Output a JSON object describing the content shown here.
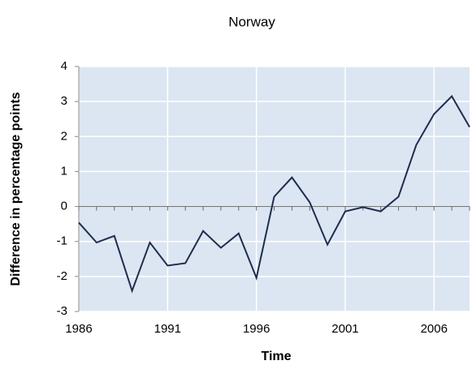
{
  "chart_data": {
    "type": "line",
    "title": "Norway",
    "x_label": "Time",
    "y_label": "Difference in percentage points",
    "x": [
      1986,
      1987,
      1988,
      1989,
      1990,
      1991,
      1992,
      1993,
      1994,
      1995,
      1996,
      1997,
      1998,
      1999,
      2000,
      2001,
      2002,
      2003,
      2004,
      2005,
      2006,
      2007,
      2008
    ],
    "series": [
      {
        "name": "Norway",
        "color": "#1f2d4e",
        "values": [
          -0.46,
          -1.03,
          -0.84,
          -2.41,
          -1.03,
          -1.69,
          -1.62,
          -0.7,
          -1.18,
          -0.77,
          -2.04,
          0.28,
          0.83,
          0.12,
          -1.09,
          -0.14,
          -0.02,
          -0.14,
          0.28,
          1.76,
          2.64,
          3.15,
          2.27
        ]
      }
    ],
    "xlim": [
      1986,
      2008
    ],
    "xticks": [
      1986,
      1991,
      1996,
      2001,
      2006
    ],
    "ylim": [
      -3,
      4
    ],
    "yticks": [
      -3,
      -2,
      -1,
      0,
      1,
      2,
      3,
      4
    ],
    "grid": true
  }
}
